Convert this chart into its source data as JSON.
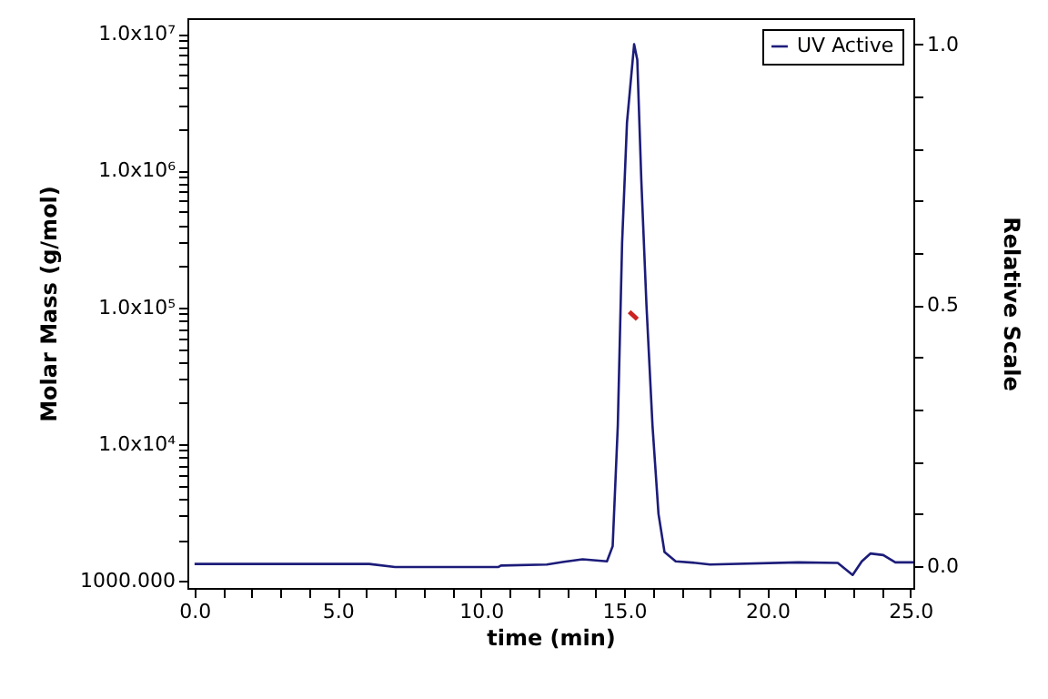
{
  "chart_data": {
    "type": "line",
    "xlabel": "time (min)",
    "ylabel": "Molar Mass (g/mol)",
    "y2label": "Relative Scale",
    "log": "y",
    "legend": "top right",
    "xlim": [
      -0.25,
      25.1
    ],
    "xticks": [
      {
        "value": 0,
        "label": "0.0"
      },
      {
        "value": 1,
        "label": null
      },
      {
        "value": 2,
        "label": null
      },
      {
        "value": 3,
        "label": null
      },
      {
        "value": 4,
        "label": null
      },
      {
        "value": 5,
        "label": "5.0"
      },
      {
        "value": 6,
        "label": null
      },
      {
        "value": 7,
        "label": null
      },
      {
        "value": 8,
        "label": null
      },
      {
        "value": 9,
        "label": null
      },
      {
        "value": 10,
        "label": "10.0"
      },
      {
        "value": 11,
        "label": null
      },
      {
        "value": 12,
        "label": null
      },
      {
        "value": 13,
        "label": null
      },
      {
        "value": 14,
        "label": null
      },
      {
        "value": 15,
        "label": "15.0"
      },
      {
        "value": 16,
        "label": null
      },
      {
        "value": 17,
        "label": null
      },
      {
        "value": 18,
        "label": null
      },
      {
        "value": 19,
        "label": null
      },
      {
        "value": 20,
        "label": "20.0"
      },
      {
        "value": 21,
        "label": null
      },
      {
        "value": 22,
        "label": null
      },
      {
        "value": 23,
        "label": null
      },
      {
        "value": 24,
        "label": null
      },
      {
        "value": 25,
        "label": "25.0"
      }
    ],
    "ylim": [
      890,
      13000000
    ],
    "yticks": [
      {
        "value": 1000,
        "label": "1000.000"
      },
      {
        "value": 2000,
        "label": null
      },
      {
        "value": 3000,
        "label": null
      },
      {
        "value": 4000,
        "label": null
      },
      {
        "value": 5000,
        "label": null
      },
      {
        "value": 6000,
        "label": null
      },
      {
        "value": 7000,
        "label": null
      },
      {
        "value": 8000,
        "label": null
      },
      {
        "value": 9000,
        "label": null
      },
      {
        "value": 10000,
        "label": "1.0x10⁴"
      },
      {
        "value": 20000,
        "label": null
      },
      {
        "value": 30000,
        "label": null
      },
      {
        "value": 40000,
        "label": null
      },
      {
        "value": 50000,
        "label": null
      },
      {
        "value": 60000,
        "label": null
      },
      {
        "value": 70000,
        "label": null
      },
      {
        "value": 80000,
        "label": null
      },
      {
        "value": 90000,
        "label": null
      },
      {
        "value": 100000,
        "label": "1.0x10⁵"
      },
      {
        "value": 200000,
        "label": null
      },
      {
        "value": 300000,
        "label": null
      },
      {
        "value": 400000,
        "label": null
      },
      {
        "value": 500000,
        "label": null
      },
      {
        "value": 600000,
        "label": null
      },
      {
        "value": 700000,
        "label": null
      },
      {
        "value": 800000,
        "label": null
      },
      {
        "value": 900000,
        "label": null
      },
      {
        "value": 1000000,
        "label": "1.0x10⁶"
      },
      {
        "value": 2000000,
        "label": null
      },
      {
        "value": 3000000,
        "label": null
      },
      {
        "value": 4000000,
        "label": null
      },
      {
        "value": 5000000,
        "label": null
      },
      {
        "value": 6000000,
        "label": null
      },
      {
        "value": 7000000,
        "label": null
      },
      {
        "value": 8000000,
        "label": null
      },
      {
        "value": 9000000,
        "label": null
      },
      {
        "value": 10000000,
        "label": "1.0x10⁷"
      }
    ],
    "y2lim": [
      -0.042,
      1.05
    ],
    "y2ticks": [
      {
        "value": 0,
        "label": "0.0"
      },
      {
        "value": 0.1,
        "label": null
      },
      {
        "value": 0.2,
        "label": null
      },
      {
        "value": 0.3,
        "label": null
      },
      {
        "value": 0.4,
        "label": null
      },
      {
        "value": 0.5,
        "label": "0.5"
      },
      {
        "value": 0.6,
        "label": null
      },
      {
        "value": 0.7,
        "label": null
      },
      {
        "value": 0.8,
        "label": null
      },
      {
        "value": 0.9,
        "label": null
      },
      {
        "value": 1,
        "label": "1.0"
      }
    ],
    "series": [
      {
        "name": "UV Active",
        "color": "#1c1c7a",
        "axis": "y2",
        "x": [
          0,
          6.1,
          7.0,
          10.6,
          10.7,
          12.3,
          12.9,
          13.55,
          14.4,
          14.6,
          14.78,
          14.93,
          15.1,
          15.35,
          15.46,
          15.6,
          15.78,
          15.99,
          16.2,
          16.41,
          16.8,
          17.5,
          18.0,
          21.08,
          22.46,
          22.98,
          23.3,
          23.6,
          24.05,
          24.47,
          25.1
        ],
        "values": [
          0.004,
          0.004,
          -0.002,
          -0.002,
          0.001,
          0.003,
          0.008,
          0.013,
          0.009,
          0.038,
          0.27,
          0.62,
          0.85,
          1.0,
          0.97,
          0.74,
          0.5,
          0.27,
          0.1,
          0.027,
          0.009,
          0.006,
          0.003,
          0.007,
          0.006,
          -0.017,
          0.009,
          0.024,
          0.021,
          0.007,
          0.007
        ]
      },
      {
        "color": "#cc2222",
        "x": [
          15.18,
          15.46
        ],
        "values": [
          93000,
          82000
        ]
      }
    ]
  }
}
